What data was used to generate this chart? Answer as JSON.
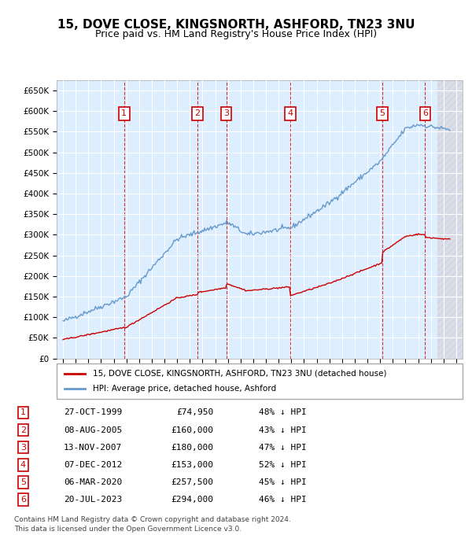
{
  "title": "15, DOVE CLOSE, KINGSNORTH, ASHFORD, TN23 3NU",
  "subtitle": "Price paid vs. HM Land Registry's House Price Index (HPI)",
  "ylabel": "",
  "background_color": "#ffffff",
  "plot_bg_color": "#ddeeff",
  "grid_color": "#ffffff",
  "ylim": [
    0,
    675000
  ],
  "yticks": [
    0,
    50000,
    100000,
    150000,
    200000,
    250000,
    300000,
    350000,
    400000,
    450000,
    500000,
    550000,
    600000,
    650000
  ],
  "ytick_labels": [
    "£0",
    "£50K",
    "£100K",
    "£150K",
    "£200K",
    "£250K",
    "£300K",
    "£350K",
    "£400K",
    "£450K",
    "£500K",
    "£550K",
    "£600K",
    "£650K"
  ],
  "xlim_start": 1994.5,
  "xlim_end": 2026.5,
  "transactions": [
    {
      "num": 1,
      "date": "27-OCT-1999",
      "year": 1999.82,
      "price": 74950,
      "pct": "48% ↓ HPI"
    },
    {
      "num": 2,
      "date": "08-AUG-2005",
      "year": 2005.6,
      "price": 160000,
      "pct": "43% ↓ HPI"
    },
    {
      "num": 3,
      "date": "13-NOV-2007",
      "year": 2007.87,
      "price": 180000,
      "pct": "47% ↓ HPI"
    },
    {
      "num": 4,
      "date": "07-DEC-2012",
      "year": 2012.93,
      "price": 153000,
      "pct": "52% ↓ HPI"
    },
    {
      "num": 5,
      "date": "06-MAR-2020",
      "year": 2020.18,
      "price": 257500,
      "pct": "45% ↓ HPI"
    },
    {
      "num": 6,
      "date": "20-JUL-2023",
      "year": 2023.55,
      "price": 294000,
      "pct": "46% ↓ HPI"
    }
  ],
  "legend_property_label": "15, DOVE CLOSE, KINGSNORTH, ASHFORD, TN23 3NU (detached house)",
  "legend_hpi_label": "HPI: Average price, detached house, Ashford",
  "footer_line1": "Contains HM Land Registry data © Crown copyright and database right 2024.",
  "footer_line2": "This data is licensed under the Open Government Licence v3.0.",
  "property_line_color": "#cc0000",
  "hpi_line_color": "#6699cc",
  "dashed_vline_color": "#cc0000",
  "transaction_box_color": "#cc0000",
  "hatch_color": "#ddcccc"
}
